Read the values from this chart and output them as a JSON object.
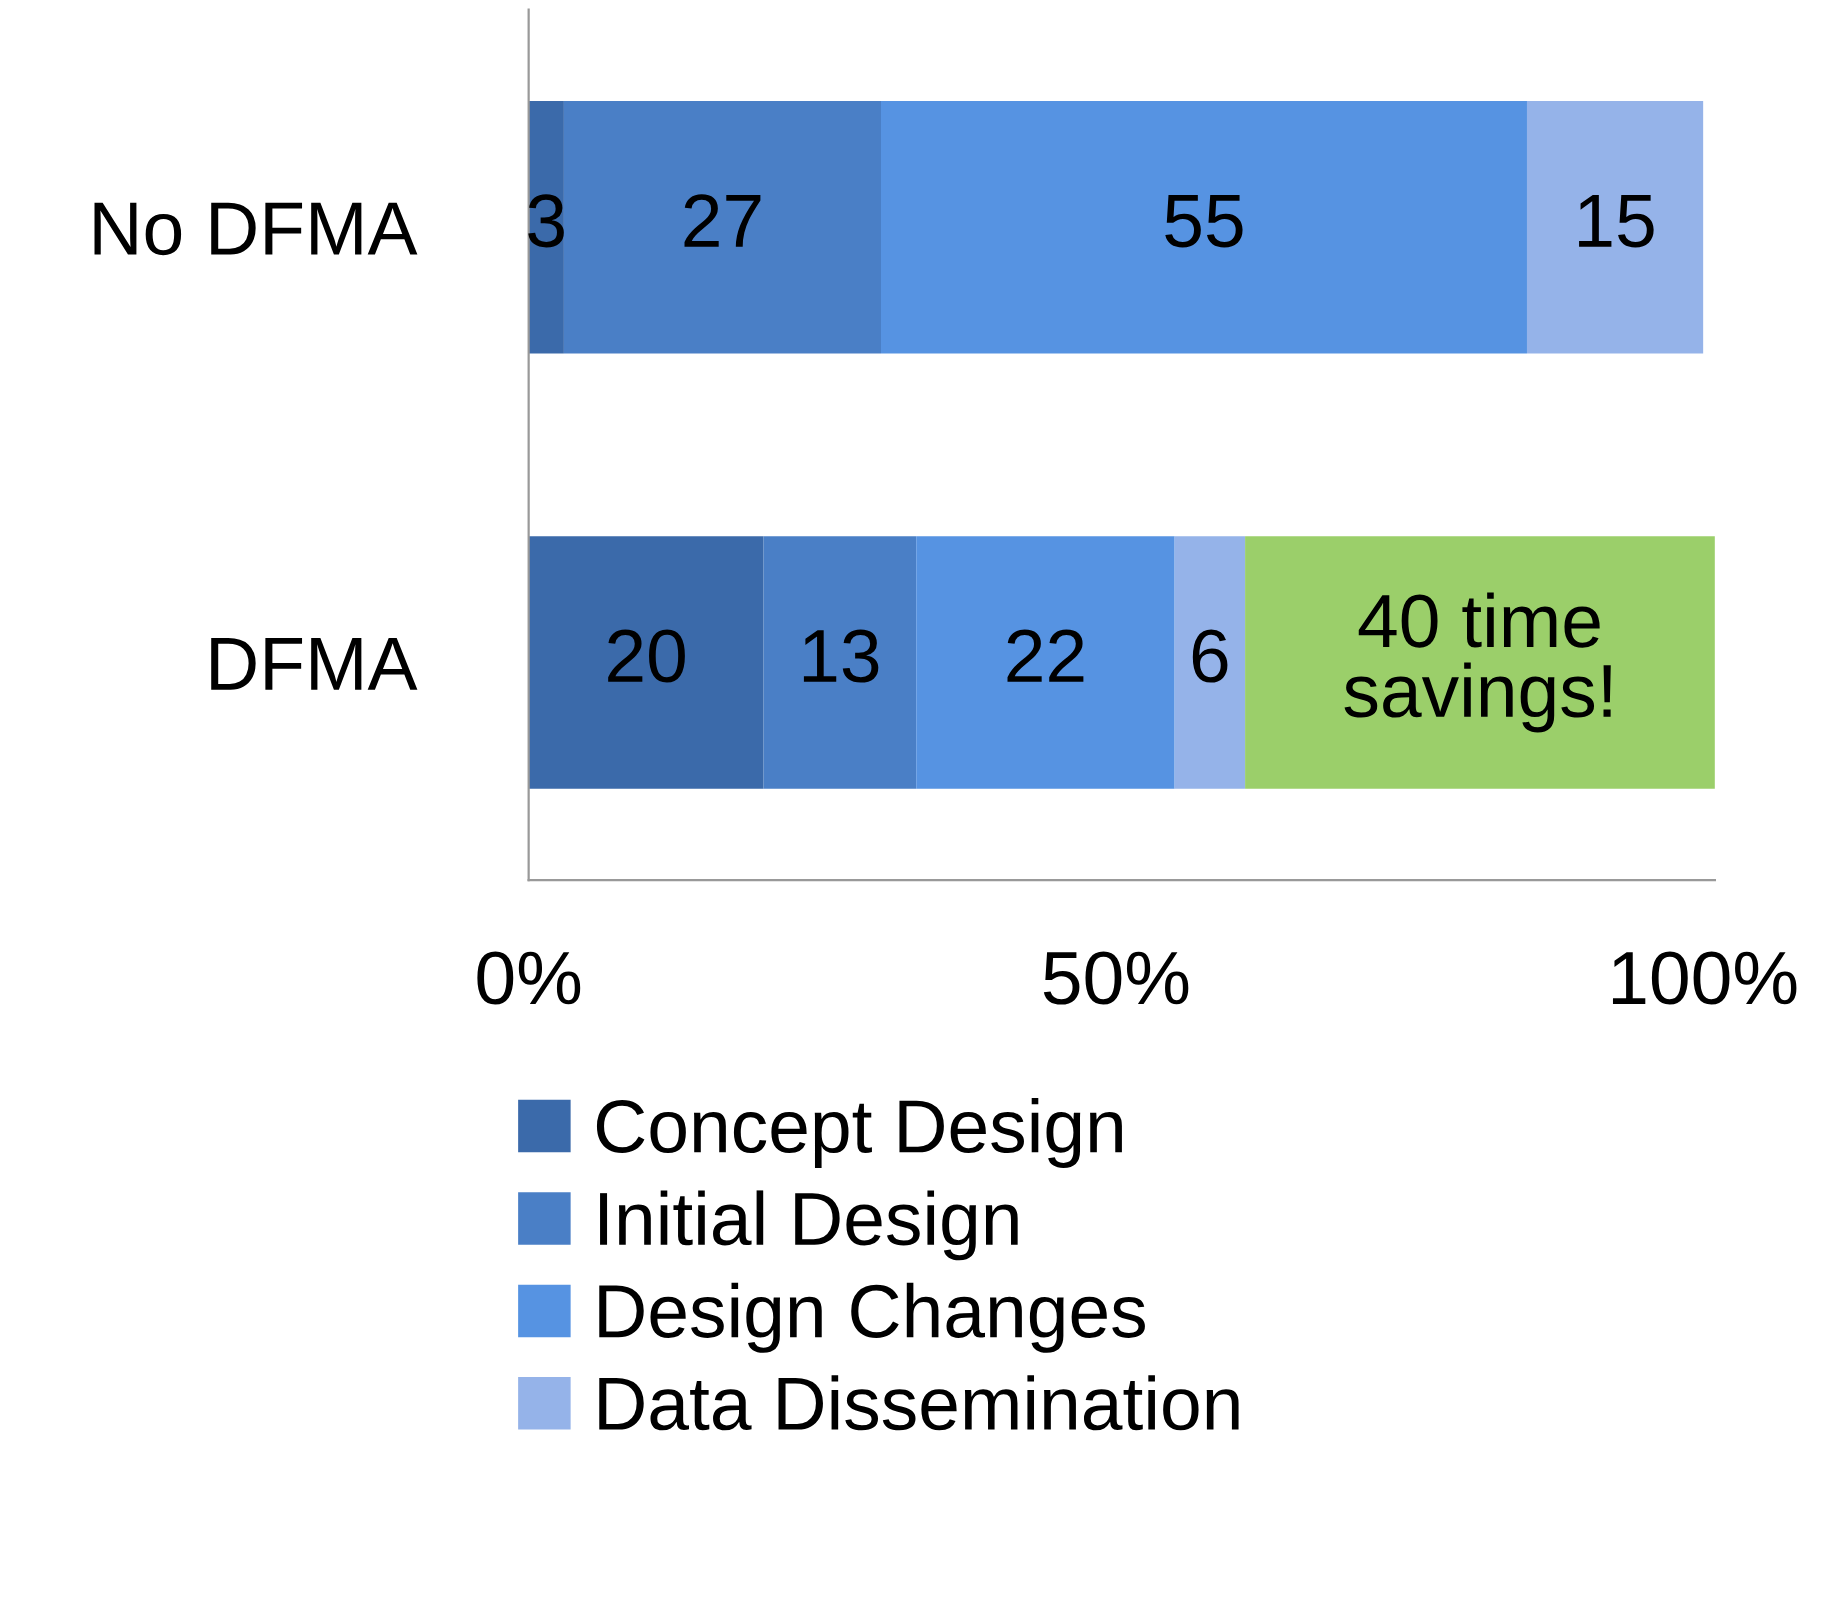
{
  "chart_data": {
    "type": "bar",
    "orientation": "horizontal",
    "stacked": true,
    "categories": [
      "No DFMA",
      "DFMA"
    ],
    "series": [
      {
        "name": "Concept Design",
        "color": "#3b6aaa",
        "values": [
          3,
          20
        ],
        "value_labels": [
          "3",
          "20"
        ]
      },
      {
        "name": "Initial Design",
        "color": "#4a7fc6",
        "values": [
          27,
          13
        ],
        "value_labels": [
          "27",
          "13"
        ]
      },
      {
        "name": "Design Changes",
        "color": "#5693e2",
        "values": [
          55,
          22
        ],
        "value_labels": [
          "55",
          "22"
        ]
      },
      {
        "name": "Data Dissemination",
        "color": "#95b3e9",
        "values": [
          15,
          6
        ],
        "value_labels": [
          "15",
          "6"
        ]
      },
      {
        "color": "#9bcf6a",
        "values": [
          null,
          40
        ],
        "value_labels": [
          null,
          "40 time\nsavings!"
        ]
      }
    ],
    "xlim": [
      0,
      101
    ],
    "xticks": [
      {
        "value": 0,
        "label": "0%"
      },
      {
        "value": 50,
        "label": "50%"
      },
      {
        "value": 100,
        "label": "100%"
      }
    ],
    "grid": false,
    "legend": "bottom"
  }
}
